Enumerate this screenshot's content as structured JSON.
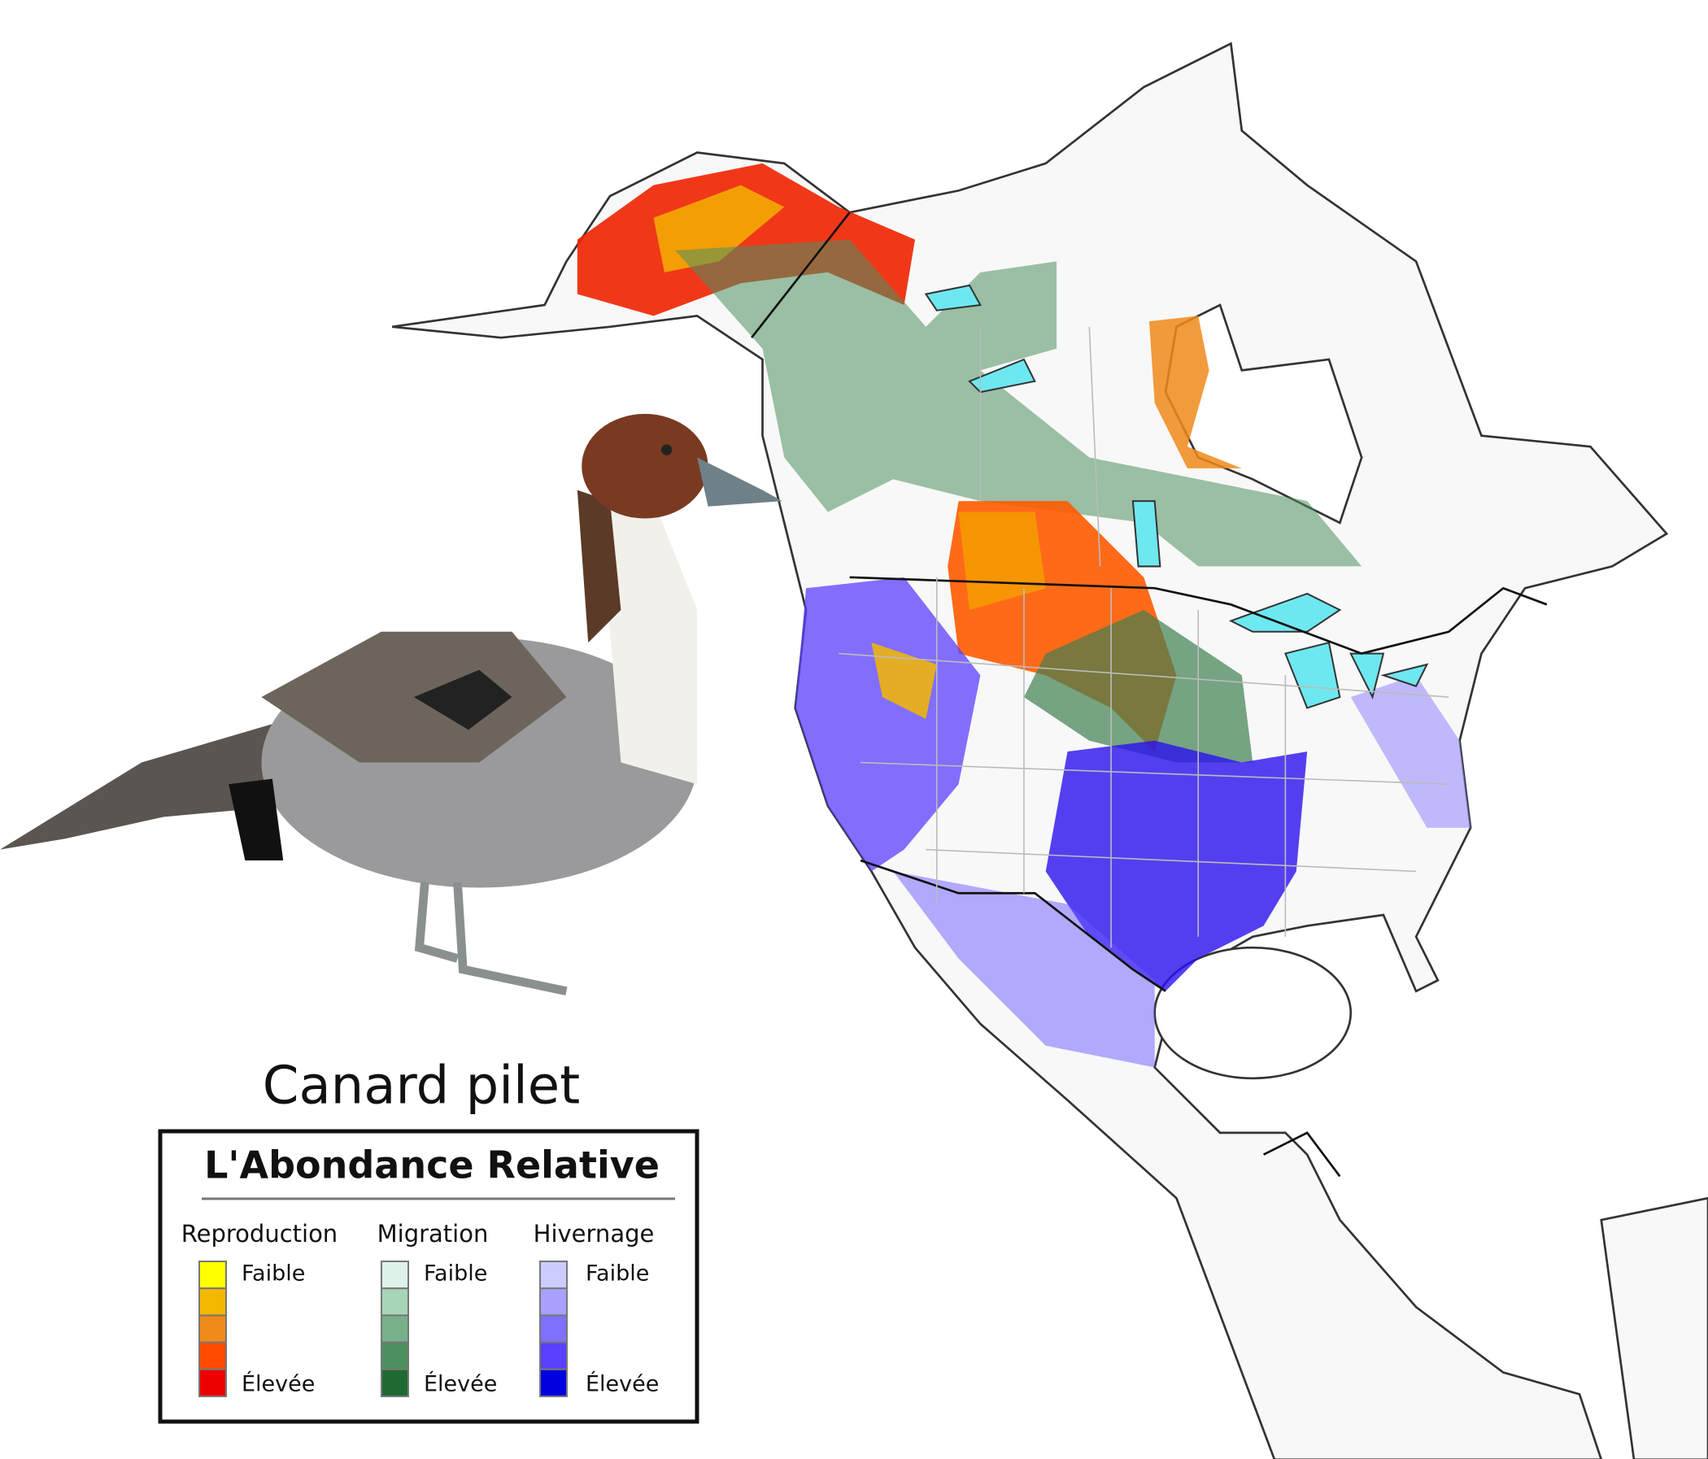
{
  "title": "Canard pilet",
  "legend": {
    "title": "L'Abondance Relative",
    "groups": [
      {
        "name": "Reproduction",
        "low": "Faible",
        "high": "Élevée",
        "colors": [
          "#ffff00",
          "#f5b800",
          "#f08a1a",
          "#ff4a00",
          "#ee0000"
        ]
      },
      {
        "name": "Migration",
        "low": "Faible",
        "high": "Élevée",
        "colors": [
          "#dff2ea",
          "#a8d4b8",
          "#78b08a",
          "#4d8f5f",
          "#1f6a33"
        ]
      },
      {
        "name": "Hivernage",
        "low": "Faible",
        "high": "Élevée",
        "colors": [
          "#ccccff",
          "#a9a0ff",
          "#7f70ff",
          "#5a40ff",
          "#0000e0"
        ]
      }
    ]
  }
}
